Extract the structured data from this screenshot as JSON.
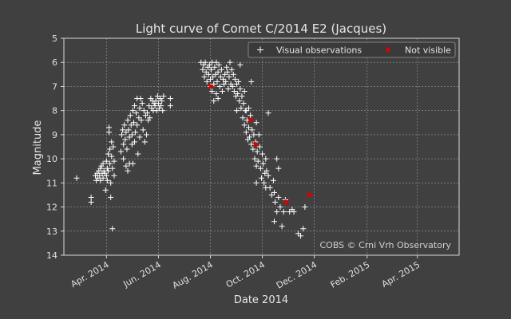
{
  "chart_data": {
    "type": "scatter",
    "title": "Light curve of Comet C/2014 E2 (Jacques)",
    "xlabel": "Date 2014",
    "ylabel": "Magnitude",
    "xlim": [
      "2014-02-10",
      "2015-05-20"
    ],
    "ylim": [
      5,
      14
    ],
    "y_inverted": true,
    "grid": true,
    "legend_position": "top-right",
    "x_ticks": [
      {
        "date": "2014-04-01",
        "label": "Apr. 2014"
      },
      {
        "date": "2014-06-01",
        "label": "Jun. 2014"
      },
      {
        "date": "2014-08-01",
        "label": "Aug. 2014"
      },
      {
        "date": "2014-10-01",
        "label": "Oct. 2014"
      },
      {
        "date": "2014-12-01",
        "label": "Dec. 2014"
      },
      {
        "date": "2015-02-01",
        "label": "Feb. 2015"
      },
      {
        "date": "2015-04-01",
        "label": "Apr. 2015"
      }
    ],
    "y_ticks": [
      5,
      6,
      7,
      8,
      9,
      10,
      11,
      12,
      13,
      14
    ],
    "annotation": "COBS © Crni Vrh Observatory",
    "series": [
      {
        "name": "Visual observations",
        "marker": "plus",
        "color": "#ffffff",
        "points": [
          [
            "2014-02-25",
            10.8
          ],
          [
            "2014-03-14",
            11.6
          ],
          [
            "2014-03-14",
            11.8
          ],
          [
            "2014-03-19",
            10.7
          ],
          [
            "2014-03-20",
            10.9
          ],
          [
            "2014-03-21",
            10.6
          ],
          [
            "2014-03-22",
            10.8
          ],
          [
            "2014-03-23",
            10.5
          ],
          [
            "2014-03-24",
            10.7
          ],
          [
            "2014-03-25",
            10.4
          ],
          [
            "2014-03-25",
            10.9
          ],
          [
            "2014-03-26",
            10.3
          ],
          [
            "2014-03-27",
            10.6
          ],
          [
            "2014-03-28",
            10.2
          ],
          [
            "2014-03-28",
            10.8
          ],
          [
            "2014-03-29",
            10.5
          ],
          [
            "2014-03-30",
            10.6
          ],
          [
            "2014-03-31",
            11.3
          ],
          [
            "2014-04-01",
            10.1
          ],
          [
            "2014-04-01",
            10.7
          ],
          [
            "2014-04-02",
            10.4
          ],
          [
            "2014-04-02",
            10.9
          ],
          [
            "2014-04-03",
            9.8
          ],
          [
            "2014-04-03",
            10.5
          ],
          [
            "2014-04-04",
            8.9
          ],
          [
            "2014-04-04",
            8.7
          ],
          [
            "2014-04-05",
            9.6
          ],
          [
            "2014-04-05",
            10.2
          ],
          [
            "2014-04-06",
            11.0
          ],
          [
            "2014-04-06",
            11.6
          ],
          [
            "2014-04-07",
            9.3
          ],
          [
            "2014-04-07",
            9.9
          ],
          [
            "2014-04-08",
            10.4
          ],
          [
            "2014-04-08",
            12.9
          ],
          [
            "2014-04-09",
            9.5
          ],
          [
            "2014-04-10",
            10.1
          ],
          [
            "2014-04-10",
            10.7
          ],
          [
            "2014-04-18",
            9.7
          ],
          [
            "2014-04-19",
            9.0
          ],
          [
            "2014-04-20",
            8.8
          ],
          [
            "2014-04-21",
            9.4
          ],
          [
            "2014-04-21",
            10.0
          ],
          [
            "2014-04-22",
            8.6
          ],
          [
            "2014-04-23",
            9.2
          ],
          [
            "2014-04-24",
            8.9
          ],
          [
            "2014-04-24",
            10.3
          ],
          [
            "2014-04-25",
            9.6
          ],
          [
            "2014-04-26",
            8.4
          ],
          [
            "2014-04-26",
            10.5
          ],
          [
            "2014-04-27",
            8.8
          ],
          [
            "2014-04-28",
            9.1
          ],
          [
            "2014-04-28",
            10.2
          ],
          [
            "2014-04-29",
            8.2
          ],
          [
            "2014-04-30",
            8.6
          ],
          [
            "2014-05-01",
            9.0
          ],
          [
            "2014-05-01",
            9.4
          ],
          [
            "2014-05-02",
            8.0
          ],
          [
            "2014-05-02",
            10.2
          ],
          [
            "2014-05-03",
            8.5
          ],
          [
            "2014-05-04",
            7.8
          ],
          [
            "2014-05-04",
            9.3
          ],
          [
            "2014-05-05",
            8.9
          ],
          [
            "2014-05-06",
            8.1
          ],
          [
            "2014-05-07",
            7.5
          ],
          [
            "2014-05-07",
            8.6
          ],
          [
            "2014-05-08",
            9.8
          ],
          [
            "2014-05-09",
            8.3
          ],
          [
            "2014-05-10",
            7.9
          ],
          [
            "2014-05-10",
            9.1
          ],
          [
            "2014-05-11",
            7.5
          ],
          [
            "2014-05-12",
            8.4
          ],
          [
            "2014-05-13",
            7.7
          ],
          [
            "2014-05-14",
            8.8
          ],
          [
            "2014-05-15",
            8.0
          ],
          [
            "2014-05-16",
            9.3
          ],
          [
            "2014-05-17",
            8.2
          ],
          [
            "2014-05-18",
            9.0
          ],
          [
            "2014-05-19",
            8.1
          ],
          [
            "2014-05-20",
            8.4
          ],
          [
            "2014-05-21",
            7.8
          ],
          [
            "2014-05-22",
            8.3
          ],
          [
            "2014-05-23",
            7.5
          ],
          [
            "2014-05-24",
            7.9
          ],
          [
            "2014-05-25",
            7.6
          ],
          [
            "2014-05-26",
            8.0
          ],
          [
            "2014-05-27",
            7.7
          ],
          [
            "2014-05-28",
            7.8
          ],
          [
            "2014-05-29",
            7.6
          ],
          [
            "2014-05-30",
            8.0
          ],
          [
            "2014-05-31",
            7.4
          ],
          [
            "2014-06-01",
            7.7
          ],
          [
            "2014-06-02",
            7.9
          ],
          [
            "2014-06-03",
            7.5
          ],
          [
            "2014-06-04",
            7.8
          ],
          [
            "2014-06-05",
            7.6
          ],
          [
            "2014-06-06",
            8.0
          ],
          [
            "2014-06-07",
            7.4
          ],
          [
            "2014-06-15",
            7.5
          ],
          [
            "2014-06-15",
            7.8
          ],
          [
            "2014-07-21",
            6.0
          ],
          [
            "2014-07-23",
            6.3
          ],
          [
            "2014-07-24",
            6.1
          ],
          [
            "2014-07-25",
            6.6
          ],
          [
            "2014-07-26",
            6.0
          ],
          [
            "2014-07-27",
            6.4
          ],
          [
            "2014-07-28",
            6.8
          ],
          [
            "2014-07-29",
            6.2
          ],
          [
            "2014-07-30",
            6.5
          ],
          [
            "2014-07-31",
            6.1
          ],
          [
            "2014-08-01",
            6.7
          ],
          [
            "2014-08-01",
            7.0
          ],
          [
            "2014-08-02",
            6.3
          ],
          [
            "2014-08-03",
            6.0
          ],
          [
            "2014-08-03",
            7.2
          ],
          [
            "2014-08-04",
            6.6
          ],
          [
            "2014-08-05",
            6.9
          ],
          [
            "2014-08-05",
            7.6
          ],
          [
            "2014-08-06",
            6.2
          ],
          [
            "2014-08-07",
            6.5
          ],
          [
            "2014-08-08",
            7.3
          ],
          [
            "2014-08-08",
            6.0
          ],
          [
            "2014-08-09",
            6.8
          ],
          [
            "2014-08-10",
            6.4
          ],
          [
            "2014-08-10",
            7.5
          ],
          [
            "2014-08-11",
            6.1
          ],
          [
            "2014-08-12",
            7.0
          ],
          [
            "2014-08-13",
            6.6
          ],
          [
            "2014-08-14",
            6.3
          ],
          [
            "2014-08-15",
            7.2
          ],
          [
            "2014-08-16",
            6.7
          ],
          [
            "2014-08-17",
            6.9
          ],
          [
            "2014-08-18",
            6.5
          ],
          [
            "2014-08-19",
            6.8
          ],
          [
            "2014-08-20",
            6.2
          ],
          [
            "2014-08-21",
            6.4
          ],
          [
            "2014-08-22",
            7.1
          ],
          [
            "2014-08-23",
            6.6
          ],
          [
            "2014-08-24",
            6.0
          ],
          [
            "2014-08-25",
            6.9
          ],
          [
            "2014-08-26",
            6.3
          ],
          [
            "2014-08-27",
            7.0
          ],
          [
            "2014-08-28",
            6.5
          ],
          [
            "2014-08-29",
            7.2
          ],
          [
            "2014-08-30",
            6.7
          ],
          [
            "2014-08-31",
            7.4
          ],
          [
            "2014-09-01",
            6.9
          ],
          [
            "2014-09-01",
            8.0
          ],
          [
            "2014-09-02",
            7.3
          ],
          [
            "2014-09-03",
            6.8
          ],
          [
            "2014-09-04",
            7.6
          ],
          [
            "2014-09-05",
            7.1
          ],
          [
            "2014-09-06",
            7.9
          ],
          [
            "2014-09-07",
            7.4
          ],
          [
            "2014-09-08",
            8.3
          ],
          [
            "2014-09-09",
            7.7
          ],
          [
            "2014-09-10",
            8.6
          ],
          [
            "2014-09-10",
            7.2
          ],
          [
            "2014-09-11",
            8.0
          ],
          [
            "2014-09-12",
            8.9
          ],
          [
            "2014-09-13",
            8.4
          ],
          [
            "2014-09-14",
            9.2
          ],
          [
            "2014-09-15",
            8.7
          ],
          [
            "2014-09-15",
            7.9
          ],
          [
            "2014-09-16",
            9.1
          ],
          [
            "2014-09-17",
            8.2
          ],
          [
            "2014-09-18",
            9.4
          ],
          [
            "2014-09-19",
            8.8
          ],
          [
            "2014-09-20",
            9.6
          ],
          [
            "2014-09-21",
            9.0
          ],
          [
            "2014-09-22",
            10.0
          ],
          [
            "2014-09-23",
            9.3
          ],
          [
            "2014-09-24",
            10.3
          ],
          [
            "2014-09-24",
            8.5
          ],
          [
            "2014-09-25",
            9.7
          ],
          [
            "2014-09-26",
            10.1
          ],
          [
            "2014-09-27",
            9.0
          ],
          [
            "2014-09-28",
            9.5
          ],
          [
            "2014-09-29",
            10.4
          ],
          [
            "2014-09-30",
            10.8
          ],
          [
            "2014-10-01",
            9.8
          ],
          [
            "2014-10-02",
            10.2
          ],
          [
            "2014-10-03",
            11.0
          ],
          [
            "2014-10-04",
            10.6
          ],
          [
            "2014-10-05",
            10.0
          ],
          [
            "2014-10-06",
            10.5
          ],
          [
            "2014-10-08",
            10.7
          ],
          [
            "2014-10-10",
            11.2
          ],
          [
            "2014-10-12",
            11.5
          ],
          [
            "2014-10-14",
            10.9
          ],
          [
            "2014-10-15",
            12.6
          ],
          [
            "2014-10-16",
            11.8
          ],
          [
            "2014-10-18",
            12.2
          ],
          [
            "2014-10-20",
            11.6
          ],
          [
            "2014-10-22",
            12.0
          ],
          [
            "2014-10-24",
            12.8
          ],
          [
            "2014-10-26",
            12.2
          ],
          [
            "2014-10-28",
            11.7
          ],
          [
            "2014-11-05",
            12.1
          ],
          [
            "2014-11-07",
            12.2
          ],
          [
            "2014-11-12",
            13.1
          ],
          [
            "2014-11-15",
            13.2
          ],
          [
            "2014-11-18",
            12.9
          ],
          [
            "2014-09-05",
            6.1
          ],
          [
            "2014-09-12",
            8.0
          ],
          [
            "2014-09-18",
            6.8
          ],
          [
            "2014-09-24",
            11.0
          ],
          [
            "2014-10-05",
            11.2
          ],
          [
            "2014-10-08",
            8.1
          ],
          [
            "2014-10-15",
            11.4
          ],
          [
            "2014-10-18",
            10.0
          ],
          [
            "2014-10-20",
            10.4
          ],
          [
            "2014-11-02",
            12.2
          ],
          [
            "2014-11-20",
            12.0
          ]
        ]
      },
      {
        "name": "Not visible",
        "marker": "triangle-right",
        "color": "#dd0000",
        "points": [
          [
            "2014-08-02",
            7.0
          ],
          [
            "2014-09-18",
            8.4
          ],
          [
            "2014-09-24",
            9.4
          ],
          [
            "2014-10-30",
            11.8
          ],
          [
            "2014-11-26",
            11.5
          ]
        ]
      }
    ]
  }
}
